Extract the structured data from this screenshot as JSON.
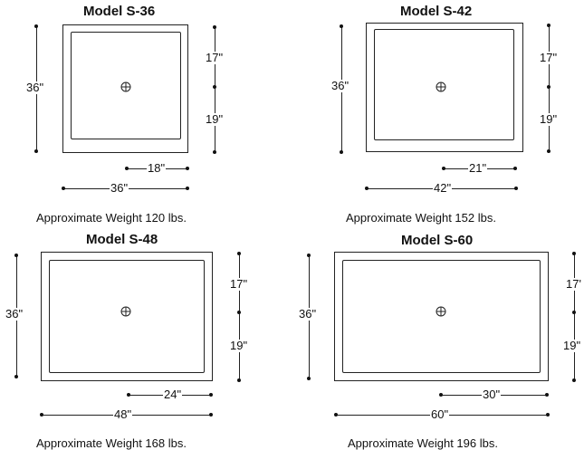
{
  "models": [
    {
      "title": "Model S-36",
      "height_label": "36\"",
      "top_label": "17\"",
      "bottom_label": "19\"",
      "drain_label": "18\"",
      "width_label": "36\"",
      "weight_text": "Approximate Weight  120 lbs."
    },
    {
      "title": "Model S-42",
      "height_label": "36\"",
      "top_label": "17\"",
      "bottom_label": "19\"",
      "drain_label": "21\"",
      "width_label": "42\"",
      "weight_text": "Approximate Weight  152 lbs."
    },
    {
      "title": "Model S-48",
      "height_label": "36\"",
      "top_label": "17\"",
      "bottom_label": "19\"",
      "drain_label": "24\"",
      "width_label": "48\"",
      "weight_text": "Approximate Weight  168 lbs."
    },
    {
      "title": "Model S-60",
      "height_label": "36\"",
      "top_label": "17'",
      "bottom_label": "19\"",
      "drain_label": "30\"",
      "width_label": "60\"",
      "weight_text": "Approximate Weight  196 lbs."
    }
  ]
}
